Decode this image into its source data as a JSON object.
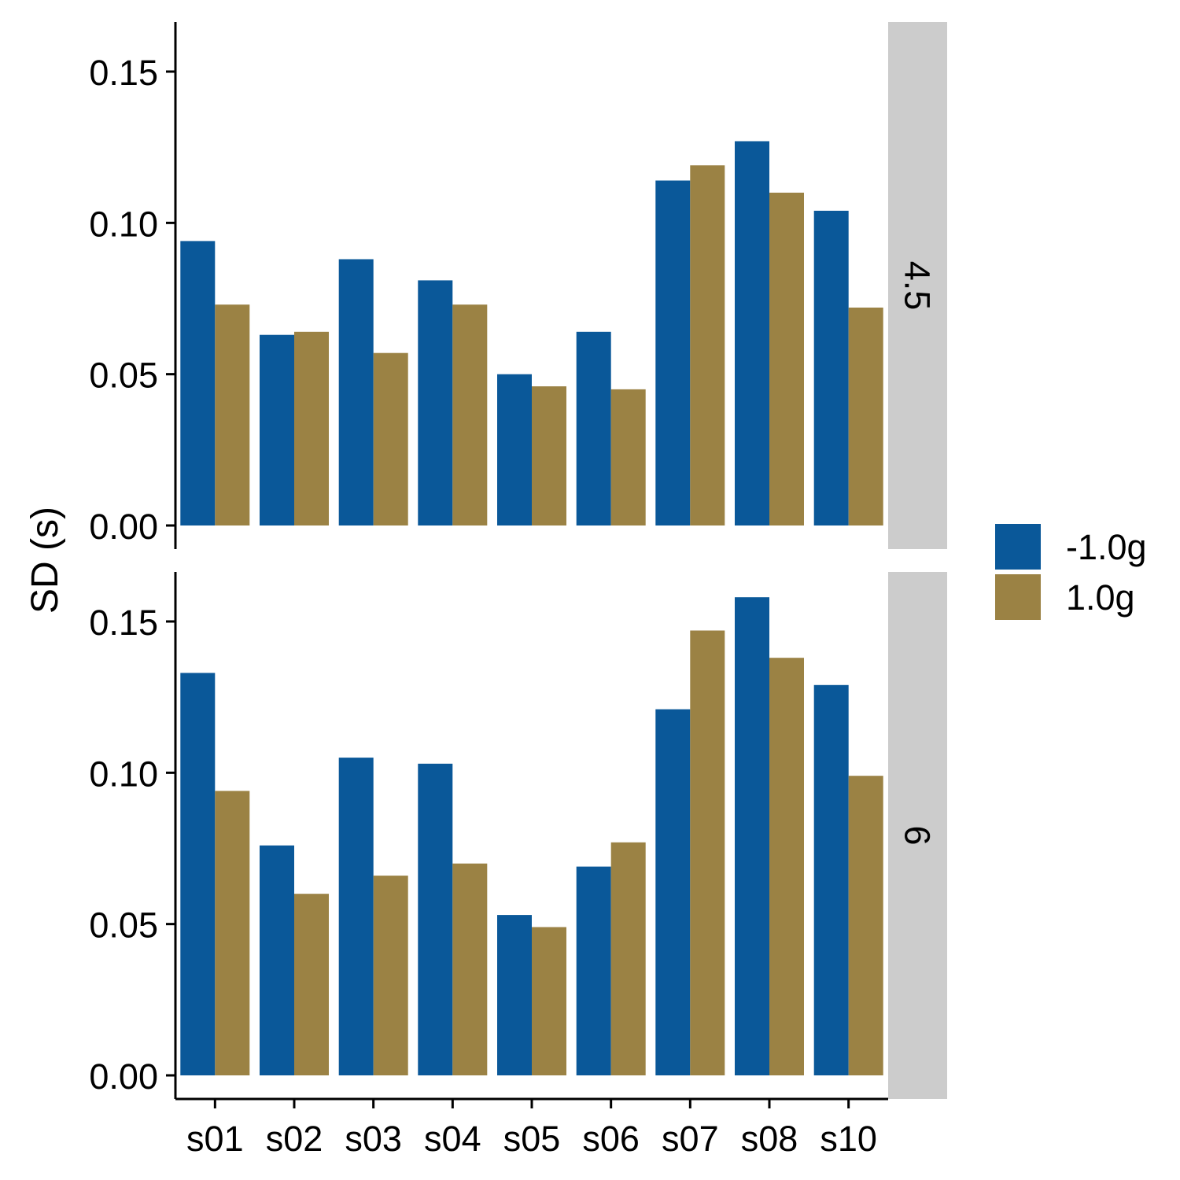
{
  "chart_data": {
    "type": "bar",
    "layout": "faceted grouped bars",
    "ylabel": "SD (s)",
    "xlabel": "",
    "categories": [
      "s01",
      "s02",
      "s03",
      "s04",
      "s05",
      "s06",
      "s07",
      "s08",
      "s10"
    ],
    "ylim": [
      0,
      0.165
    ],
    "yticks": [
      "0.00",
      "0.05",
      "0.10",
      "0.15"
    ],
    "yticks_values": [
      0,
      0.05,
      0.1,
      0.15
    ],
    "legend": {
      "position": "right",
      "entries": [
        {
          "label": "-1.0g",
          "color": "#0a5899"
        },
        {
          "label": "1.0g",
          "color": "#9b8244"
        }
      ]
    },
    "strip_color": "#cccccc",
    "facets": [
      {
        "label": "4.5",
        "series": [
          {
            "name": "-1.0g",
            "values": [
              0.094,
              0.063,
              0.088,
              0.081,
              0.05,
              0.064,
              0.114,
              0.127,
              0.104
            ]
          },
          {
            "name": "1.0g",
            "values": [
              0.073,
              0.064,
              0.057,
              0.073,
              0.046,
              0.045,
              0.119,
              0.11,
              0.072
            ]
          }
        ]
      },
      {
        "label": "6",
        "series": [
          {
            "name": "-1.0g",
            "values": [
              0.133,
              0.076,
              0.105,
              0.103,
              0.053,
              0.069,
              0.121,
              0.158,
              0.129
            ]
          },
          {
            "name": "1.0g",
            "values": [
              0.094,
              0.06,
              0.066,
              0.07,
              0.049,
              0.077,
              0.147,
              0.138,
              0.099
            ]
          }
        ]
      }
    ],
    "grid": false
  }
}
